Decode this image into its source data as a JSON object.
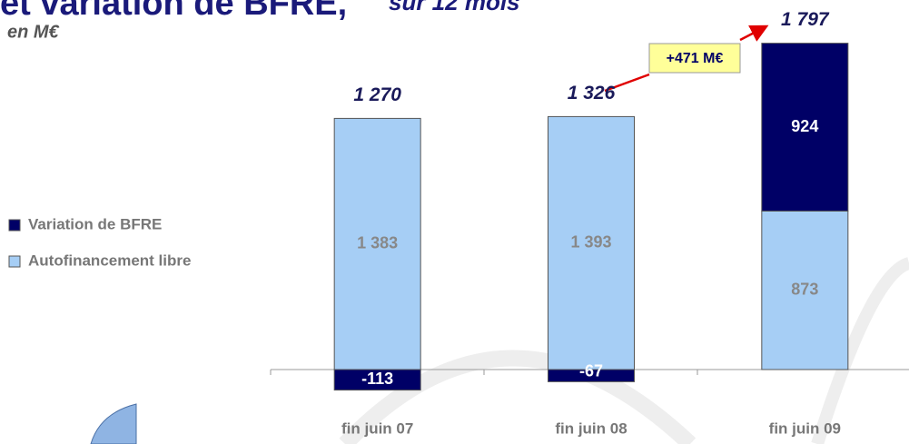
{
  "chart_data": {
    "type": "stacked_bar",
    "title": "et variation de BFRE,",
    "title_suffix": "sur 12 mois",
    "subtitle": "en M€",
    "categories": [
      "fin juin 07",
      "fin juin 08",
      "fin juin 09"
    ],
    "series": [
      {
        "name": "Autofinancement libre",
        "color": "#a6cef5",
        "values": [
          1383,
          1393,
          873
        ],
        "value_labels": [
          "1 383",
          "1 393",
          "873"
        ]
      },
      {
        "name": "Variation de BFRE",
        "color": "#000066",
        "values": [
          -113,
          -67,
          924
        ]
      }
    ],
    "totals": [
      1270,
      1326,
      1797
    ],
    "total_labels": [
      "1 270",
      "1 326",
      "1 797"
    ],
    "annotation": "+471 M€",
    "ylim": [
      -200,
      1850
    ],
    "legend": "left"
  }
}
